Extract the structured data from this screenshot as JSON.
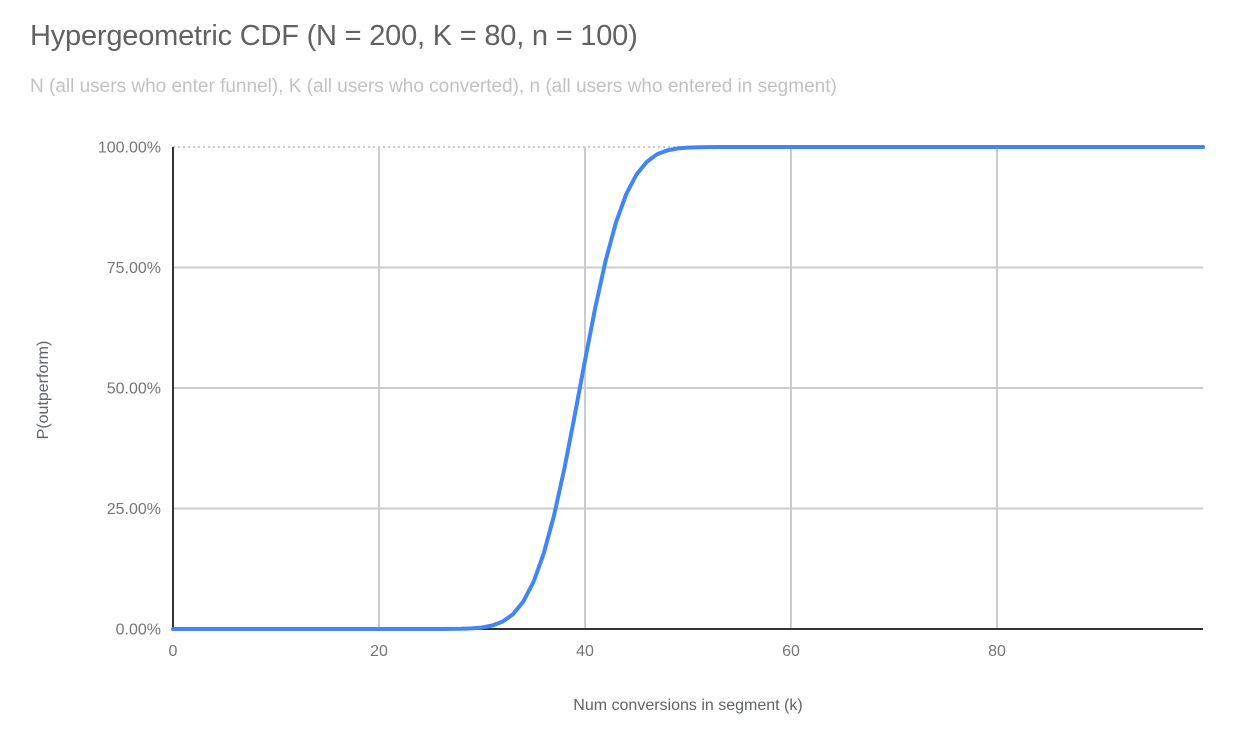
{
  "chart_data": {
    "type": "line",
    "title": "Hypergeometric CDF (N = 200, K = 80, n = 100)",
    "subtitle": "N (all users who enter funnel), K (all users who converted), n (all users who entered in segment)",
    "xlabel": "Num conversions in segment (k)",
    "ylabel": "P(outperform)",
    "xlim": [
      0,
      100
    ],
    "ylim": [
      0,
      1
    ],
    "grid": true,
    "legend": "none",
    "x_ticks": [
      0,
      20,
      40,
      60,
      80
    ],
    "y_ticks": [
      {
        "value": 0,
        "label": "0.00%"
      },
      {
        "value": 0.25,
        "label": "25.00%"
      },
      {
        "value": 0.5,
        "label": "50.00%"
      },
      {
        "value": 0.75,
        "label": "75.00%"
      },
      {
        "value": 1,
        "label": "100.00%"
      }
    ],
    "series": [
      {
        "name": "P(outperform)",
        "color": "#4285f4",
        "points": [
          [
            0,
            0
          ],
          [
            5,
            0
          ],
          [
            10,
            0
          ],
          [
            15,
            0
          ],
          [
            20,
            0
          ],
          [
            22,
            0
          ],
          [
            24,
            0
          ],
          [
            25,
            0
          ],
          [
            26,
            0.0001
          ],
          [
            27,
            0.0002
          ],
          [
            28,
            0.0005
          ],
          [
            29,
            0.0012
          ],
          [
            30,
            0.0031
          ],
          [
            31,
            0.0072
          ],
          [
            32,
            0.0154
          ],
          [
            33,
            0.0306
          ],
          [
            34,
            0.0566
          ],
          [
            35,
            0.0975
          ],
          [
            36,
            0.157
          ],
          [
            37,
            0.236
          ],
          [
            38,
            0.333
          ],
          [
            39,
            0.443
          ],
          [
            40,
            0.557
          ],
          [
            41,
            0.667
          ],
          [
            42,
            0.764
          ],
          [
            43,
            0.843
          ],
          [
            44,
            0.902
          ],
          [
            45,
            0.943
          ],
          [
            46,
            0.969
          ],
          [
            47,
            0.985
          ],
          [
            48,
            0.993
          ],
          [
            49,
            0.997
          ],
          [
            50,
            0.9988
          ],
          [
            51,
            0.9995
          ],
          [
            52,
            0.9998
          ],
          [
            53,
            0.9999
          ],
          [
            54,
            1
          ],
          [
            55,
            1
          ],
          [
            60,
            1
          ],
          [
            65,
            1
          ],
          [
            70,
            1
          ],
          [
            75,
            1
          ],
          [
            80,
            1
          ],
          [
            85,
            1
          ],
          [
            90,
            1
          ],
          [
            95,
            1
          ],
          [
            100,
            1
          ]
        ]
      }
    ]
  },
  "colors": {
    "line": "#4285f4",
    "gridline": "#cccccc",
    "axis": "#333333",
    "title": "#616161",
    "subtitle": "#c2c2c2",
    "tick_label": "#757575",
    "axis_title": "#5f6368"
  }
}
